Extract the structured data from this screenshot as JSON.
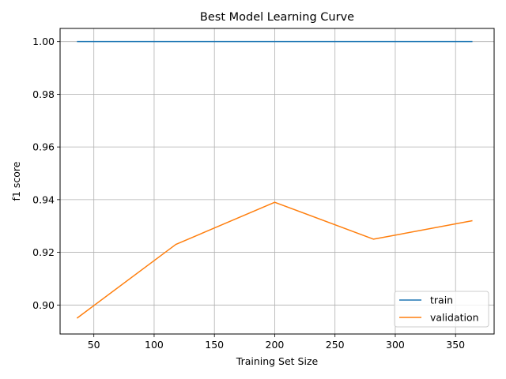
{
  "chart_data": {
    "type": "line",
    "title": "Best Model Learning Curve",
    "xlabel": "Training Set Size",
    "ylabel": "f1 score",
    "xlim": [
      22,
      382
    ],
    "ylim": [
      0.889,
      1.005
    ],
    "xticks": [
      50,
      100,
      150,
      200,
      250,
      300,
      350
    ],
    "yticks": [
      0.9,
      0.92,
      0.94,
      0.96,
      0.98,
      1.0
    ],
    "ytick_labels": [
      "0.90",
      "0.92",
      "0.94",
      "0.96",
      "0.98",
      "1.00"
    ],
    "grid": true,
    "legend_position": "lower right",
    "x": [
      36,
      118,
      200,
      282,
      364
    ],
    "series": [
      {
        "name": "train",
        "color": "#1f77b4",
        "values": [
          1.0,
          1.0,
          1.0,
          1.0,
          1.0
        ]
      },
      {
        "name": "validation",
        "color": "#ff7f0e",
        "values": [
          0.895,
          0.923,
          0.939,
          0.925,
          0.932
        ]
      }
    ]
  }
}
